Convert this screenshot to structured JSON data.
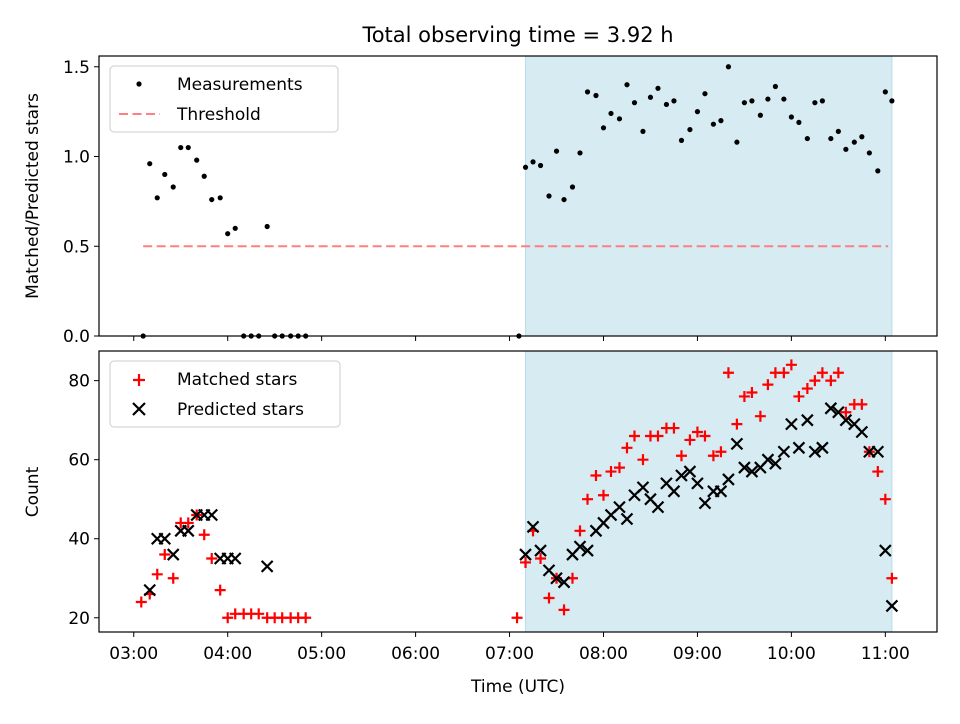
{
  "chart_data": {
    "title": "Total observing time = 3.92 h",
    "xlabel": "Time (UTC)",
    "x_ticks": [
      "03:00",
      "04:00",
      "05:00",
      "06:00",
      "07:00",
      "08:00",
      "09:00",
      "10:00",
      "11:00"
    ],
    "xlim_hours": [
      2.63,
      11.55
    ],
    "shaded_interval_hours": [
      7.17,
      11.07
    ],
    "shade_color": "#add8e6",
    "panels": [
      {
        "type": "scatter",
        "ylabel": "Matched/Predicted stars",
        "ylim": [
          0,
          1.56
        ],
        "y_ticks": [
          "0.0",
          "0.5",
          "1.0",
          "1.5"
        ],
        "y_tick_values": [
          0,
          0.5,
          1.0,
          1.5
        ],
        "legend": {
          "placement": "top-left",
          "items": [
            "Measurements",
            "Threshold"
          ]
        },
        "threshold": {
          "name": "Threshold",
          "value": 0.5,
          "x_range_hours": [
            3.1,
            11.03
          ],
          "color": "#ff7f7f"
        },
        "series": [
          {
            "name": "Measurements",
            "marker": "dot",
            "color": "#000000",
            "x_hours": [
              3.1,
              3.17,
              3.25,
              3.33,
              3.42,
              3.5,
              3.58,
              3.67,
              3.75,
              3.83,
              3.92,
              4.0,
              4.08,
              4.17,
              4.25,
              4.33,
              4.42,
              4.5,
              4.58,
              4.67,
              4.75,
              4.83,
              7.1,
              7.17,
              7.25,
              7.33,
              7.42,
              7.5,
              7.58,
              7.67,
              7.75,
              7.83,
              7.92,
              8.0,
              8.08,
              8.17,
              8.25,
              8.33,
              8.42,
              8.5,
              8.58,
              8.67,
              8.75,
              8.83,
              8.92,
              9.0,
              9.08,
              9.17,
              9.25,
              9.33,
              9.42,
              9.5,
              9.58,
              9.67,
              9.75,
              9.83,
              9.92,
              10.0,
              10.08,
              10.17,
              10.25,
              10.33,
              10.42,
              10.5,
              10.58,
              10.67,
              10.75,
              10.83,
              10.92,
              11.0,
              11.07
            ],
            "y": [
              0.0,
              0.96,
              0.77,
              0.9,
              0.83,
              1.05,
              1.05,
              0.98,
              0.89,
              0.76,
              0.77,
              0.57,
              0.6,
              0.0,
              0.0,
              0.0,
              0.61,
              0.0,
              0.0,
              0.0,
              0.0,
              0.0,
              0.0,
              0.94,
              0.97,
              0.95,
              0.78,
              1.03,
              0.76,
              0.83,
              1.02,
              1.36,
              1.34,
              1.16,
              1.24,
              1.21,
              1.4,
              1.3,
              1.14,
              1.33,
              1.38,
              1.29,
              1.31,
              1.09,
              1.15,
              1.25,
              1.35,
              1.18,
              1.2,
              1.5,
              1.08,
              1.3,
              1.31,
              1.23,
              1.32,
              1.39,
              1.32,
              1.22,
              1.19,
              1.1,
              1.3,
              1.31,
              1.1,
              1.14,
              1.04,
              1.08,
              1.11,
              1.02,
              0.92,
              1.36,
              1.31
            ]
          }
        ]
      },
      {
        "type": "scatter",
        "ylabel": "Count",
        "ylim": [
          16.4,
          87.5
        ],
        "y_ticks": [
          "20",
          "40",
          "60",
          "80"
        ],
        "y_tick_values": [
          20,
          40,
          60,
          80
        ],
        "legend": {
          "placement": "top-left",
          "items": [
            "Matched stars",
            "Predicted stars"
          ]
        },
        "series": [
          {
            "name": "Matched stars",
            "marker": "plus",
            "color": "#ff0000",
            "x_hours": [
              3.08,
              3.17,
              3.25,
              3.33,
              3.42,
              3.5,
              3.58,
              3.67,
              3.75,
              3.83,
              3.92,
              4.0,
              4.08,
              4.17,
              4.25,
              4.33,
              4.42,
              4.5,
              4.58,
              4.67,
              4.75,
              4.83,
              7.08,
              7.17,
              7.25,
              7.33,
              7.42,
              7.5,
              7.58,
              7.67,
              7.75,
              7.83,
              7.92,
              8.0,
              8.08,
              8.17,
              8.25,
              8.33,
              8.42,
              8.5,
              8.58,
              8.67,
              8.75,
              8.83,
              8.92,
              9.0,
              9.08,
              9.17,
              9.25,
              9.33,
              9.42,
              9.5,
              9.58,
              9.67,
              9.75,
              9.83,
              9.92,
              10.0,
              10.08,
              10.17,
              10.25,
              10.33,
              10.42,
              10.5,
              10.58,
              10.67,
              10.75,
              10.83,
              10.92,
              11.0,
              11.07
            ],
            "y": [
              24,
              26,
              31,
              36,
              30,
              44,
              44,
              46,
              41,
              35,
              27,
              20,
              21,
              21,
              21,
              21,
              20,
              20,
              20,
              20,
              20,
              20,
              20,
              34,
              42,
              35,
              25,
              30,
              22,
              30,
              42,
              50,
              56,
              51,
              57,
              58,
              63,
              66,
              60,
              66,
              66,
              68,
              68,
              61,
              65,
              67,
              66,
              61,
              62,
              82,
              69,
              76,
              77,
              71,
              79,
              82,
              82,
              84,
              76,
              78,
              80,
              82,
              80,
              82,
              72,
              74,
              74,
              62,
              57,
              50,
              30
            ]
          },
          {
            "name": "Predicted stars",
            "marker": "cross",
            "color": "#000000",
            "x_hours": [
              3.17,
              3.25,
              3.33,
              3.42,
              3.5,
              3.58,
              3.67,
              3.75,
              3.83,
              3.92,
              4.0,
              4.08,
              4.42,
              7.17,
              7.25,
              7.33,
              7.42,
              7.5,
              7.58,
              7.67,
              7.75,
              7.83,
              7.92,
              8.0,
              8.08,
              8.17,
              8.25,
              8.33,
              8.42,
              8.5,
              8.58,
              8.67,
              8.75,
              8.83,
              8.92,
              9.0,
              9.08,
              9.17,
              9.25,
              9.33,
              9.42,
              9.5,
              9.58,
              9.67,
              9.75,
              9.83,
              9.92,
              10.0,
              10.08,
              10.17,
              10.25,
              10.33,
              10.42,
              10.5,
              10.58,
              10.67,
              10.75,
              10.83,
              10.92,
              11.0,
              11.07
            ],
            "y": [
              27,
              40,
              40,
              36,
              42,
              42,
              46,
              46,
              46,
              35,
              35,
              35,
              33,
              36,
              43,
              37,
              32,
              30,
              29,
              36,
              38,
              37,
              42,
              44,
              46,
              48,
              45,
              51,
              53,
              50,
              48,
              54,
              52,
              56,
              57,
              54,
              49,
              52,
              52,
              55,
              64,
              58,
              57,
              58,
              60,
              59,
              62,
              69,
              63,
              70,
              62,
              63,
              73,
              72,
              70,
              69,
              67,
              62,
              62,
              37,
              23
            ]
          }
        ]
      }
    ]
  }
}
